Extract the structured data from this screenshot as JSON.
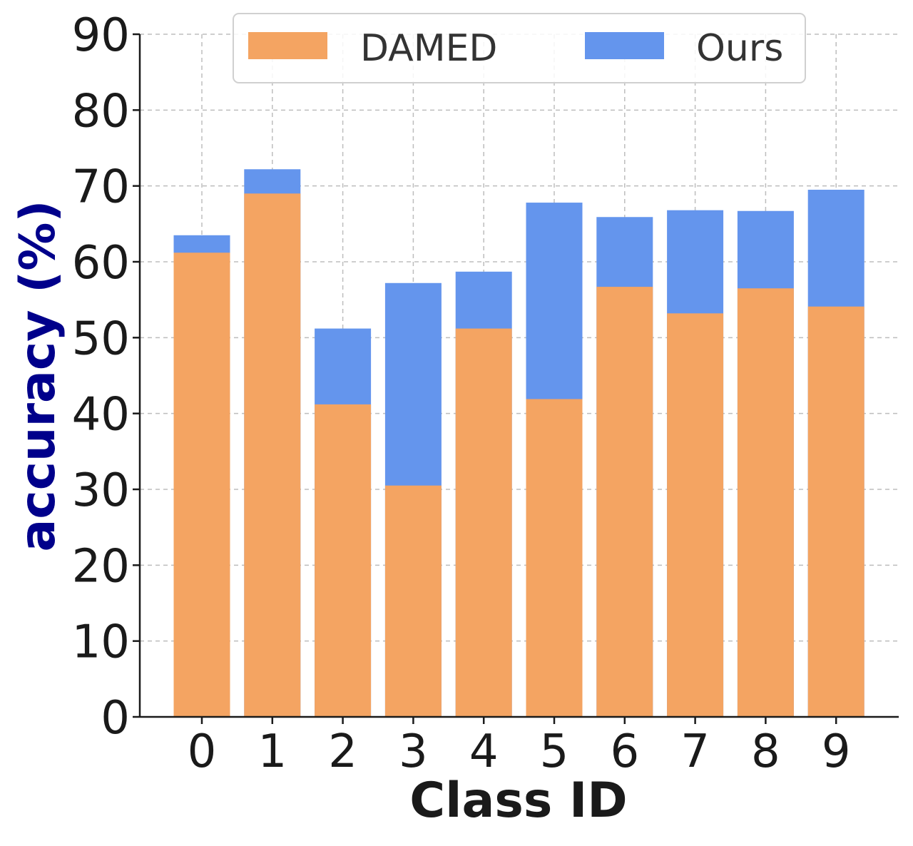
{
  "chart_data": {
    "type": "bar",
    "categories": [
      "0",
      "1",
      "2",
      "3",
      "4",
      "5",
      "6",
      "7",
      "8",
      "9"
    ],
    "series": [
      {
        "name": "DAMED",
        "values": [
          61.2,
          69.0,
          41.2,
          30.5,
          51.2,
          41.9,
          56.7,
          53.2,
          56.5,
          54.1
        ],
        "color": "#f4a462"
      },
      {
        "name": "Ours",
        "values": [
          63.5,
          72.2,
          51.2,
          57.2,
          58.7,
          67.8,
          65.9,
          66.8,
          66.7,
          69.5
        ],
        "color": "#6495ed"
      }
    ],
    "overlap_color": "#fcdba8",
    "xlabel": "Class ID",
    "ylabel": "accuracy (%)",
    "ylabel_color": "#00008b",
    "ylim": [
      0,
      90
    ],
    "yticks": [
      "0",
      "10",
      "20",
      "30",
      "40",
      "50",
      "60",
      "70",
      "80",
      "90"
    ],
    "grid": true,
    "legend_position": "top-center"
  }
}
